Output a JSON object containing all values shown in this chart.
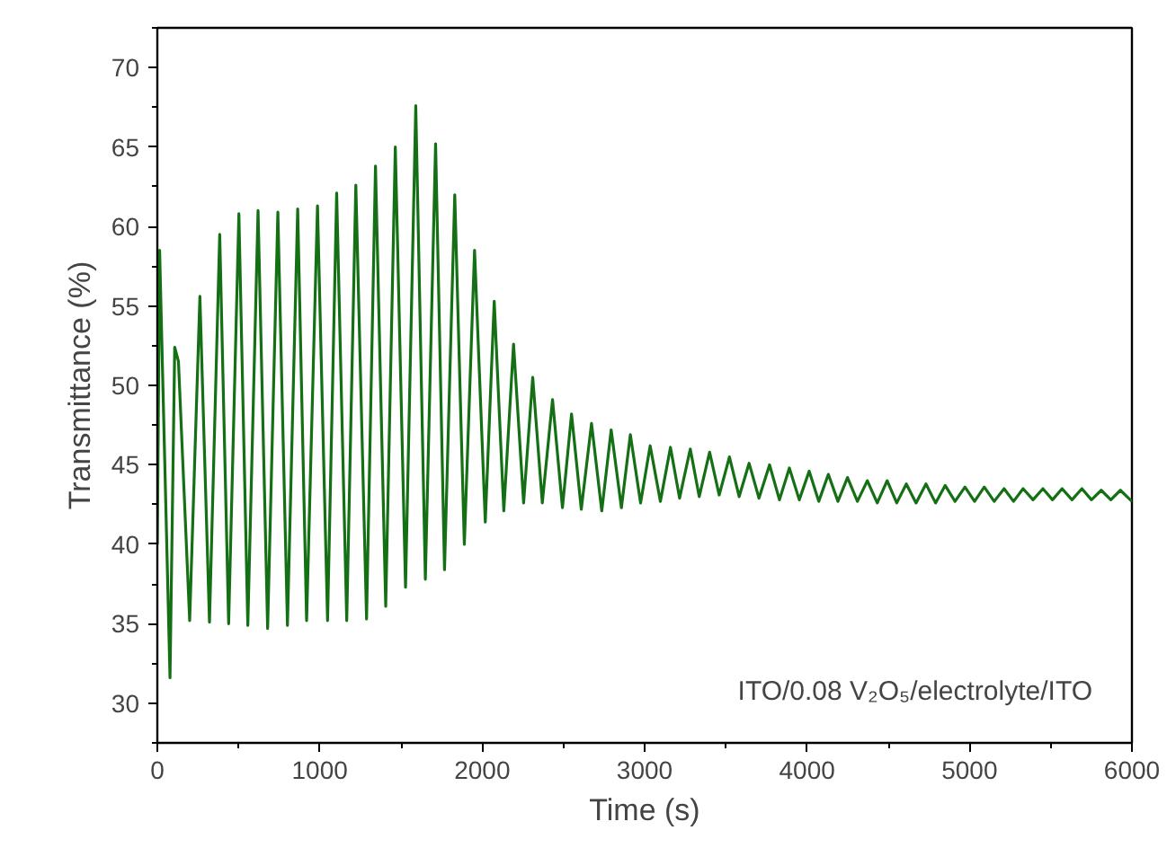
{
  "chart_data": {
    "type": "line",
    "xlabel": "Time (s)",
    "ylabel": "Transmittance (%)",
    "annotations": [
      "ITO/0.08 V₂O₅/electrolyte/ITO"
    ],
    "xlim": [
      0,
      6000
    ],
    "ylim": [
      27.5,
      72.5
    ],
    "xticks": [
      0,
      1000,
      2000,
      3000,
      4000,
      5000,
      6000
    ],
    "yticks": [
      30,
      35,
      40,
      45,
      50,
      55,
      60,
      65,
      70
    ],
    "grid": false,
    "marker": "none",
    "line_style": "solid",
    "series": [
      {
        "color": "#157015",
        "x": [
          0,
          14,
          78,
          107,
          130,
          199,
          262,
          321,
          384,
          439,
          502,
          557,
          620,
          679,
          742,
          801,
          864,
          919,
          986,
          1048,
          1104,
          1166,
          1222,
          1288,
          1343,
          1406,
          1465,
          1528,
          1591,
          1650,
          1713,
          1768,
          1831,
          1890,
          1953,
          2019,
          2074,
          2133,
          2193,
          2255,
          2311,
          2370,
          2433,
          2494,
          2550,
          2610,
          2673,
          2736,
          2794,
          2857,
          2912,
          2975,
          3034,
          3097,
          3159,
          3215,
          3281,
          3336,
          3400,
          3459,
          3522,
          3582,
          3643,
          3704,
          3769,
          3830,
          3891,
          3952,
          4013,
          4072,
          4131,
          4190,
          4249,
          4310,
          4371,
          4432,
          4493,
          4552,
          4611,
          4671,
          4732,
          4791,
          4850,
          4911,
          4972,
          5031,
          5091,
          5152,
          5213,
          5271,
          5330,
          5391,
          5452,
          5511,
          5570,
          5631,
          5692,
          5751,
          5811,
          5870,
          5929,
          6000
        ],
        "values": [
          40,
          58.5,
          31.6,
          52.4,
          51.5,
          35.2,
          55.6,
          35.1,
          59.5,
          35.0,
          60.8,
          34.9,
          61.0,
          34.7,
          60.9,
          34.9,
          61.1,
          35.2,
          61.3,
          35.2,
          62.1,
          35.2,
          62.6,
          35.3,
          63.8,
          36.1,
          65.0,
          37.3,
          67.6,
          37.8,
          65.2,
          38.4,
          62.0,
          40.0,
          58.5,
          41.4,
          55.3,
          42.1,
          52.6,
          42.6,
          50.5,
          42.6,
          49.1,
          42.3,
          48.2,
          42.2,
          47.6,
          42.1,
          47.2,
          42.3,
          46.9,
          42.6,
          46.2,
          42.7,
          46.1,
          42.9,
          46.0,
          43.0,
          45.8,
          43.1,
          45.5,
          43.0,
          45.1,
          42.9,
          45.0,
          42.8,
          44.8,
          42.8,
          44.6,
          42.7,
          44.4,
          42.7,
          44.2,
          42.7,
          44.0,
          42.6,
          44.0,
          42.6,
          43.8,
          42.6,
          43.8,
          42.6,
          43.7,
          42.7,
          43.6,
          42.7,
          43.6,
          42.7,
          43.5,
          42.7,
          43.5,
          42.8,
          43.5,
          42.8,
          43.5,
          42.8,
          43.5,
          42.8,
          43.4,
          42.8,
          43.4,
          42.7
        ]
      }
    ]
  }
}
